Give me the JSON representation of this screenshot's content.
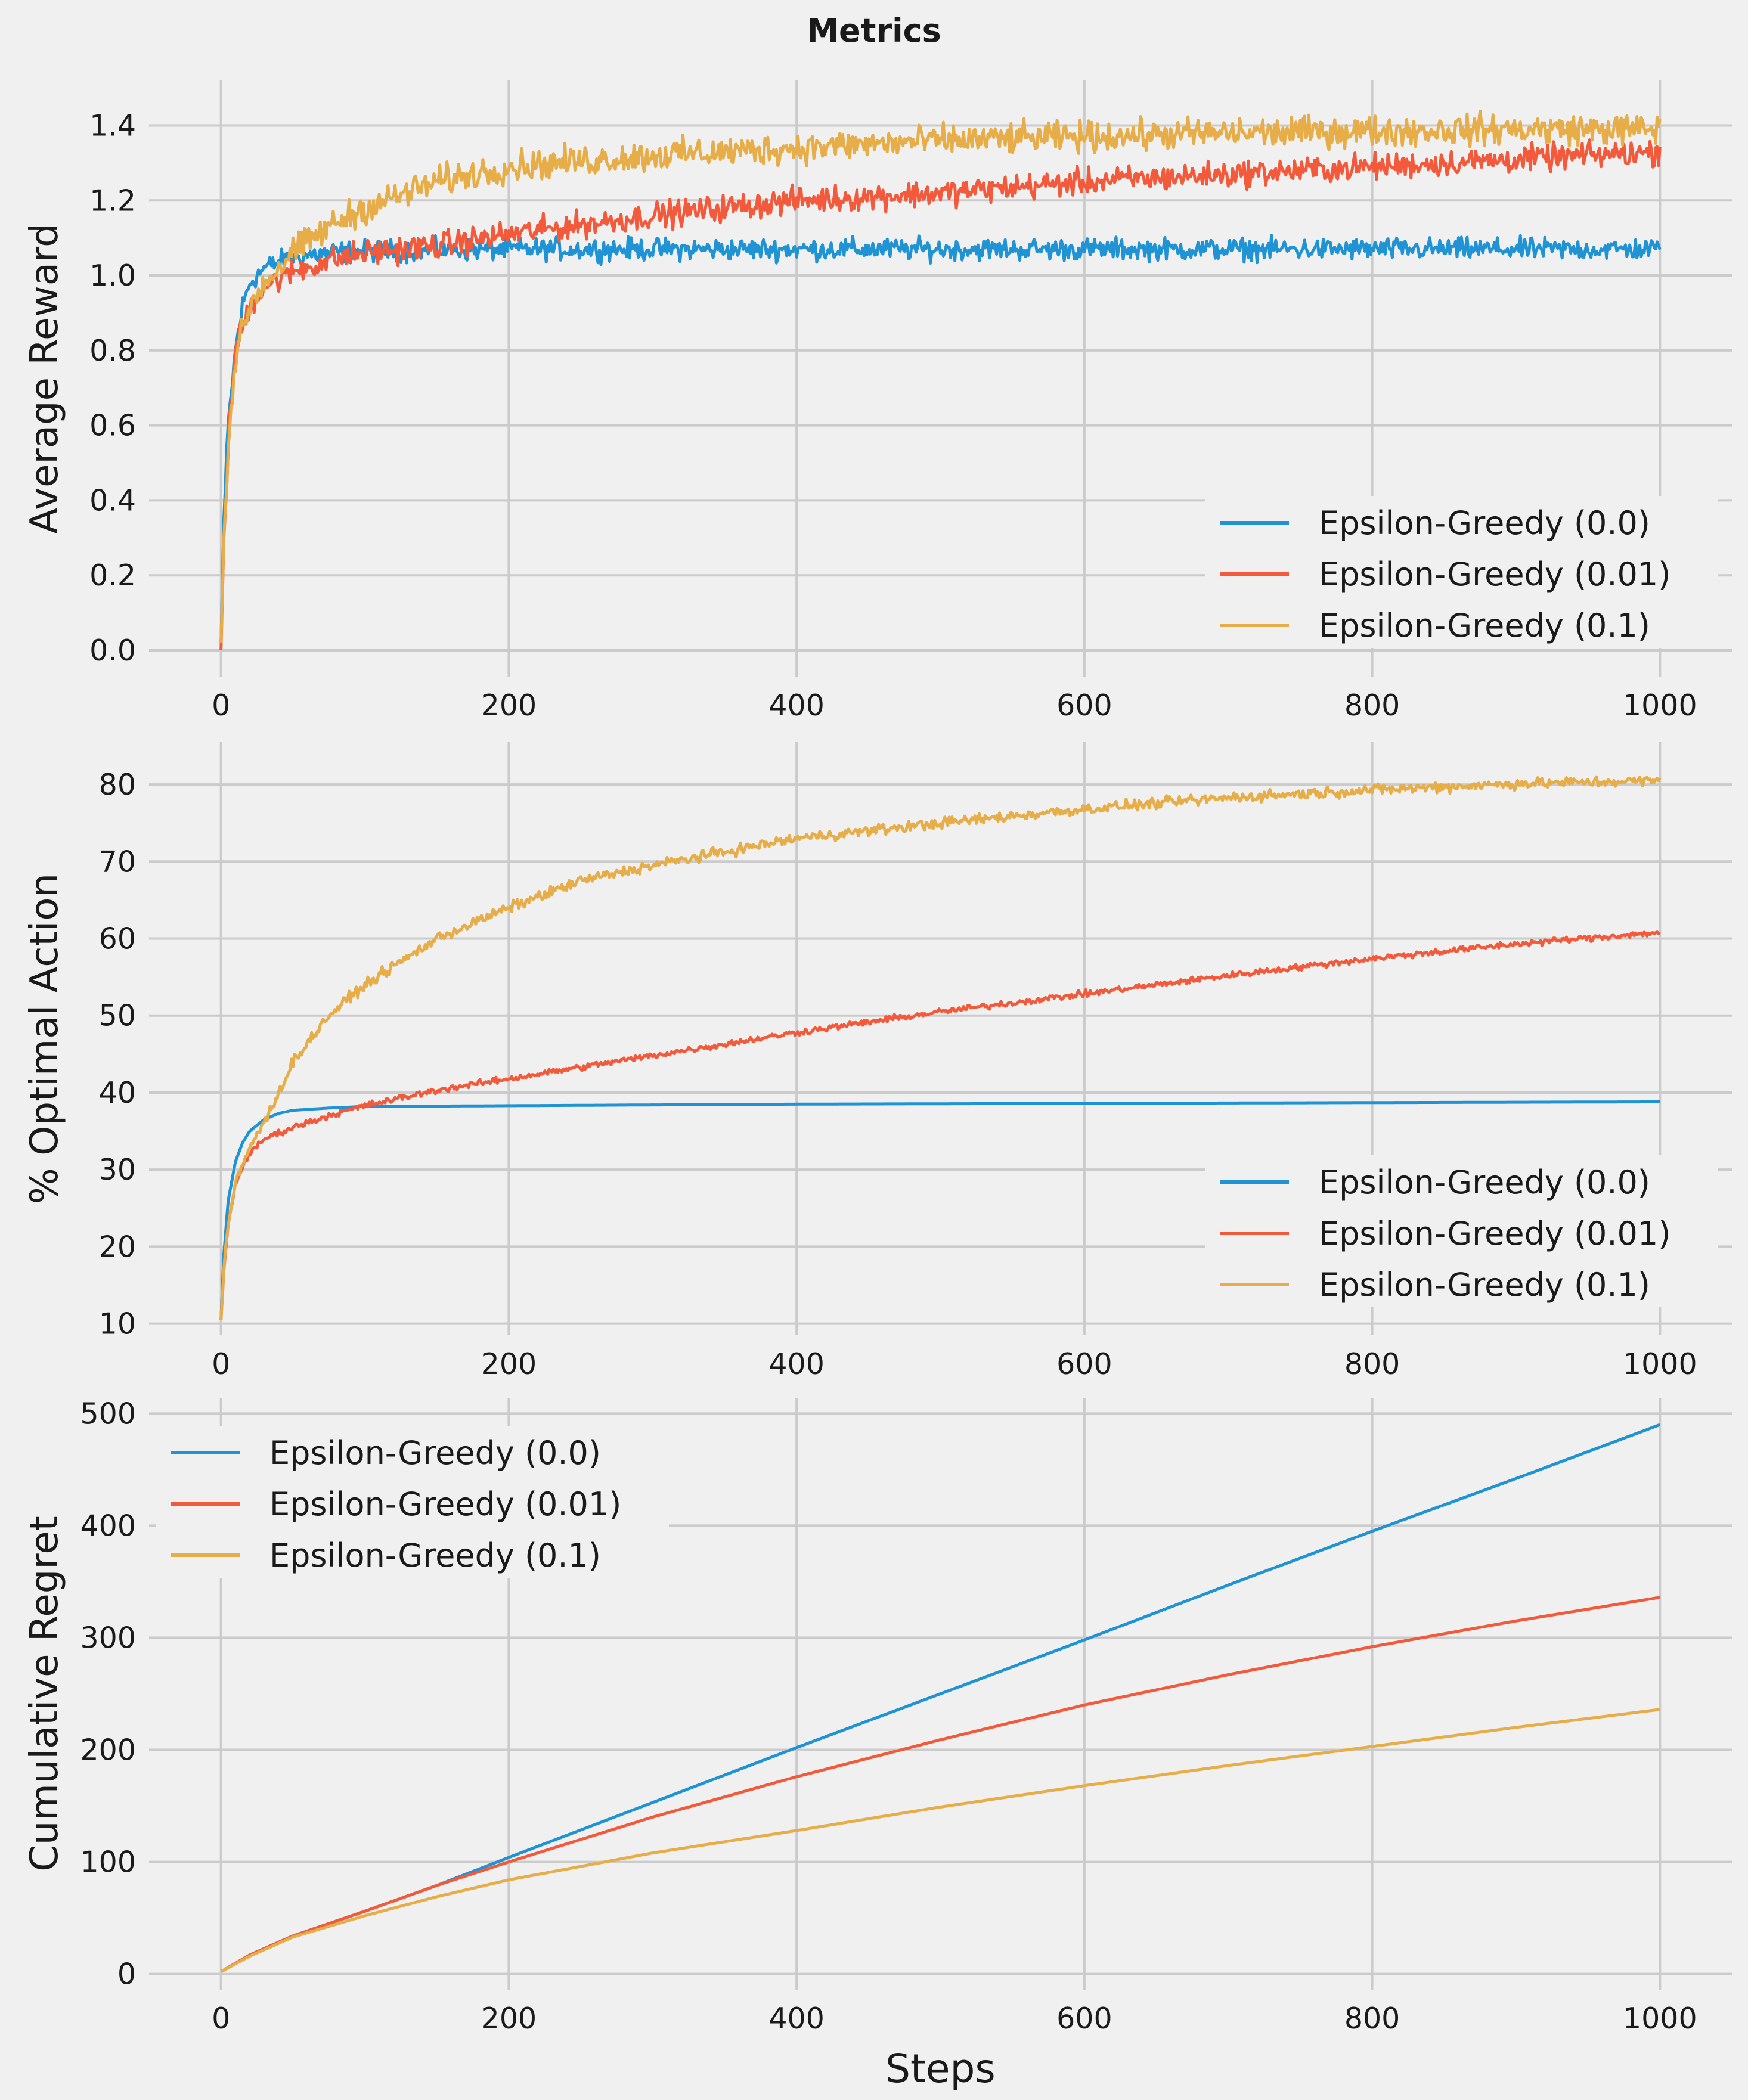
{
  "figure": {
    "title": "Metrics"
  },
  "colors": {
    "eps_0_0": "#1f93d4",
    "eps_0_01": "#f25a3b",
    "eps_0_1": "#e6ad48",
    "background": "#f0f0f0",
    "grid": "#cbcbcb"
  },
  "chart_data": [
    {
      "type": "line",
      "ylabel": "Average Reward",
      "xlabel": "",
      "xlim": [
        -50,
        1050
      ],
      "ylim": [
        -0.07,
        1.52
      ],
      "xticks": [
        0,
        200,
        400,
        600,
        800,
        1000
      ],
      "xtick_labels": [
        "0",
        "200",
        "400",
        "600",
        "800",
        "1000"
      ],
      "yticks": [
        0.0,
        0.2,
        0.4,
        0.6,
        0.8,
        1.0,
        1.2,
        1.4
      ],
      "ytick_labels": [
        "0.0",
        "0.2",
        "0.4",
        "0.6",
        "0.8",
        "1.0",
        "1.2",
        "1.4"
      ],
      "legend": "lower-right",
      "grid": true,
      "series": [
        {
          "name": "Epsilon-Greedy (0.0)",
          "color": "#1f93d4",
          "noise": 0.025,
          "x": [
            0,
            2,
            5,
            10,
            15,
            20,
            30,
            50,
            75,
            100,
            200,
            400,
            600,
            800,
            1000
          ],
          "y": [
            0.02,
            0.35,
            0.6,
            0.8,
            0.92,
            0.98,
            1.02,
            1.05,
            1.06,
            1.065,
            1.07,
            1.07,
            1.07,
            1.07,
            1.07
          ]
        },
        {
          "name": "Epsilon-Greedy (0.01)",
          "color": "#f25a3b",
          "noise": 0.03,
          "x": [
            0,
            2,
            5,
            10,
            20,
            30,
            50,
            75,
            100,
            150,
            200,
            300,
            400,
            500,
            600,
            700,
            800,
            900,
            1000
          ],
          "y": [
            0.0,
            0.3,
            0.55,
            0.8,
            0.92,
            0.97,
            1.01,
            1.04,
            1.06,
            1.08,
            1.11,
            1.16,
            1.2,
            1.22,
            1.25,
            1.27,
            1.29,
            1.31,
            1.33
          ]
        },
        {
          "name": "Epsilon-Greedy (0.1)",
          "color": "#e6ad48",
          "noise": 0.035,
          "x": [
            0,
            2,
            5,
            10,
            20,
            30,
            50,
            75,
            100,
            150,
            200,
            300,
            400,
            500,
            600,
            700,
            800,
            900,
            1000
          ],
          "y": [
            0.02,
            0.3,
            0.55,
            0.78,
            0.92,
            0.98,
            1.06,
            1.13,
            1.18,
            1.25,
            1.29,
            1.32,
            1.34,
            1.36,
            1.37,
            1.38,
            1.385,
            1.39,
            1.39
          ]
        }
      ]
    },
    {
      "type": "line",
      "ylabel": "% Optimal Action",
      "xlabel": "",
      "xlim": [
        -50,
        1050
      ],
      "ylim": [
        8.5,
        85.5
      ],
      "xticks": [
        0,
        200,
        400,
        600,
        800,
        1000
      ],
      "xtick_labels": [
        "0",
        "200",
        "400",
        "600",
        "800",
        "1000"
      ],
      "yticks": [
        10,
        20,
        30,
        40,
        50,
        60,
        70,
        80
      ],
      "ytick_labels": [
        "10",
        "20",
        "30",
        "40",
        "50",
        "60",
        "70",
        "80"
      ],
      "legend": "lower-right",
      "grid": true,
      "series": [
        {
          "name": "Epsilon-Greedy (0.0)",
          "color": "#1f93d4",
          "noise": 0.0,
          "x": [
            0,
            2,
            5,
            10,
            15,
            20,
            30,
            40,
            50,
            75,
            100,
            200,
            400,
            600,
            800,
            1000
          ],
          "y": [
            10.5,
            19,
            26,
            31,
            33.5,
            35,
            36.5,
            37.3,
            37.7,
            38.0,
            38.2,
            38.3,
            38.5,
            38.6,
            38.7,
            38.8
          ]
        },
        {
          "name": "Epsilon-Greedy (0.01)",
          "color": "#f25a3b",
          "noise": 0.35,
          "x": [
            0,
            2,
            5,
            10,
            15,
            20,
            30,
            50,
            75,
            100,
            150,
            200,
            300,
            400,
            500,
            600,
            700,
            800,
            900,
            1000
          ],
          "y": [
            10.5,
            17,
            23,
            28,
            30.5,
            32,
            34,
            35.5,
            37,
            38.3,
            40.3,
            41.8,
            44.8,
            47.8,
            50.5,
            52.8,
            55.2,
            57.4,
            59.3,
            60.8
          ]
        },
        {
          "name": "Epsilon-Greedy (0.1)",
          "color": "#e6ad48",
          "noise": 0.6,
          "x": [
            0,
            2,
            5,
            10,
            15,
            20,
            30,
            40,
            50,
            75,
            100,
            150,
            200,
            250,
            300,
            400,
            500,
            600,
            700,
            800,
            900,
            1000
          ],
          "y": [
            10.5,
            17,
            23,
            28,
            30.5,
            33,
            36,
            40,
            44,
            50,
            54,
            60,
            64,
            67.5,
            69.5,
            73,
            75,
            76.8,
            78.3,
            79.3,
            80.1,
            80.5
          ]
        }
      ]
    },
    {
      "type": "line",
      "ylabel": "Cumulative Regret",
      "xlabel": "Steps",
      "xlim": [
        -50,
        1050
      ],
      "ylim": [
        -14,
        514
      ],
      "xticks": [
        0,
        200,
        400,
        600,
        800,
        1000
      ],
      "xtick_labels": [
        "0",
        "200",
        "400",
        "600",
        "800",
        "1000"
      ],
      "yticks": [
        0,
        100,
        200,
        300,
        400,
        500
      ],
      "ytick_labels": [
        "0",
        "100",
        "200",
        "300",
        "400",
        "500"
      ],
      "legend": "upper-left",
      "grid": true,
      "series": [
        {
          "name": "Epsilon-Greedy (0.0)",
          "color": "#1f93d4",
          "noise": 0.0,
          "x": [
            0,
            20,
            50,
            100,
            150,
            200,
            300,
            400,
            500,
            600,
            700,
            800,
            900,
            1000
          ],
          "y": [
            2,
            17,
            34,
            56,
            79,
            104,
            153,
            202,
            250,
            298,
            347,
            395,
            442,
            490
          ]
        },
        {
          "name": "Epsilon-Greedy (0.01)",
          "color": "#f25a3b",
          "noise": 0.0,
          "x": [
            0,
            20,
            50,
            100,
            150,
            200,
            300,
            400,
            500,
            600,
            700,
            800,
            900,
            1000
          ],
          "y": [
            2,
            17,
            34,
            56,
            79,
            100,
            140,
            176,
            209,
            240,
            267,
            292,
            315,
            336
          ]
        },
        {
          "name": "Epsilon-Greedy (0.1)",
          "color": "#e6ad48",
          "noise": 0.0,
          "x": [
            0,
            20,
            50,
            100,
            150,
            200,
            300,
            400,
            500,
            600,
            700,
            800,
            900,
            1000
          ],
          "y": [
            2,
            16,
            33,
            52,
            69,
            84,
            108,
            128,
            149,
            168,
            186,
            203,
            220,
            236
          ]
        }
      ]
    }
  ]
}
